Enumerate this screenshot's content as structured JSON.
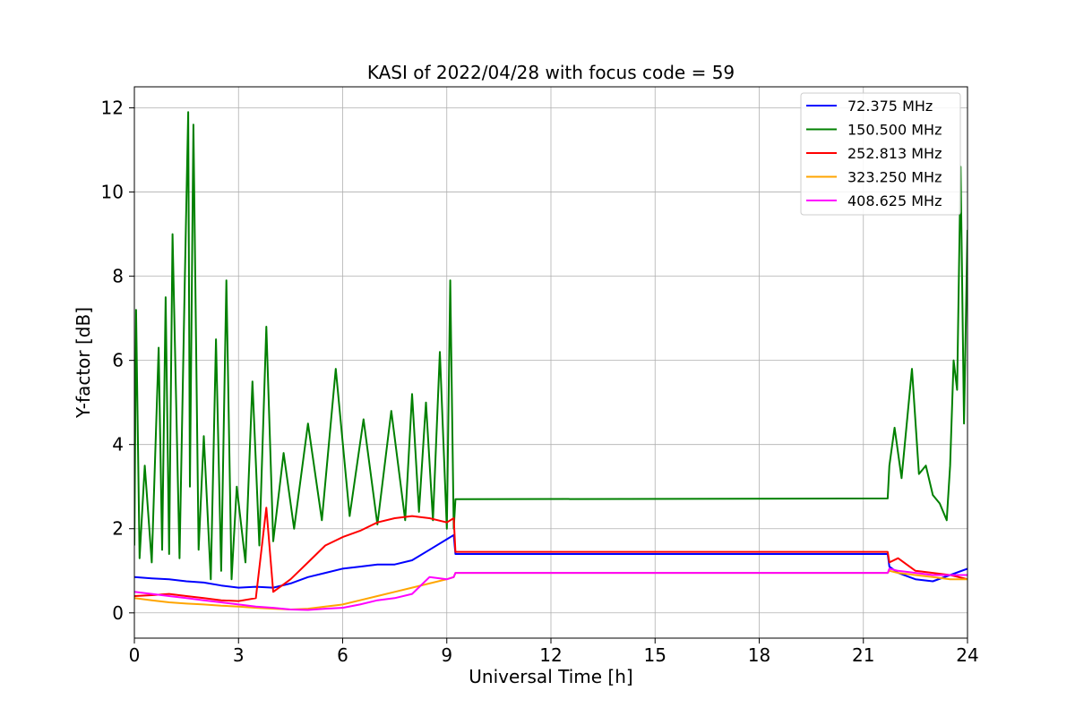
{
  "chart_data": {
    "type": "line",
    "title": "KASI of 2022/04/28 with focus code = 59",
    "xlabel": "Universal Time [h]",
    "ylabel": "Y-factor [dB]",
    "xlim": [
      0,
      24
    ],
    "ylim": [
      -0.6,
      12.5
    ],
    "xticks": [
      0,
      3,
      6,
      9,
      12,
      15,
      18,
      21,
      24
    ],
    "yticks": [
      0,
      2,
      4,
      6,
      8,
      10,
      12
    ],
    "grid": true,
    "legend_position": "top-right",
    "series": [
      {
        "name": " 72.375 MHz",
        "color": "#0000ff",
        "x": [
          0,
          0.5,
          1,
          1.5,
          2,
          2.5,
          3,
          3.5,
          4,
          4.5,
          5,
          5.5,
          6,
          6.5,
          7,
          7.5,
          8,
          8.5,
          9,
          9.2,
          9.25,
          21.7,
          21.75,
          22,
          22.5,
          23,
          23.5,
          24
        ],
        "y": [
          0.85,
          0.82,
          0.8,
          0.75,
          0.72,
          0.65,
          0.6,
          0.62,
          0.6,
          0.7,
          0.85,
          0.95,
          1.05,
          1.1,
          1.15,
          1.15,
          1.25,
          1.5,
          1.75,
          1.85,
          1.4,
          1.4,
          1.1,
          0.95,
          0.8,
          0.75,
          0.9,
          1.05
        ]
      },
      {
        "name": " 150.500 MHz",
        "color": "#008000",
        "x": [
          0,
          0.05,
          0.15,
          0.3,
          0.5,
          0.7,
          0.8,
          0.9,
          1,
          1.1,
          1.3,
          1.45,
          1.55,
          1.6,
          1.7,
          1.85,
          2,
          2.2,
          2.35,
          2.5,
          2.65,
          2.8,
          2.95,
          3.2,
          3.4,
          3.6,
          3.8,
          4,
          4.3,
          4.6,
          5,
          5.4,
          5.8,
          6.2,
          6.6,
          7,
          7.4,
          7.8,
          8,
          8.2,
          8.4,
          8.6,
          8.8,
          9,
          9.1,
          9.2,
          9.25,
          21.7,
          21.75,
          21.9,
          22.1,
          22.4,
          22.6,
          22.8,
          23,
          23.2,
          23.4,
          23.5,
          23.6,
          23.7,
          23.8,
          23.9,
          24
        ],
        "y": [
          1.6,
          7.2,
          1.3,
          3.5,
          1.2,
          6.3,
          1.5,
          7.5,
          1.4,
          9.0,
          1.3,
          7.8,
          11.9,
          3.0,
          11.6,
          1.5,
          4.2,
          0.8,
          6.5,
          1.0,
          7.9,
          0.8,
          3.0,
          1.2,
          5.5,
          1.6,
          6.8,
          1.7,
          3.8,
          2.0,
          4.5,
          2.2,
          5.8,
          2.3,
          4.6,
          2.1,
          4.8,
          2.2,
          5.2,
          2.4,
          5.0,
          2.2,
          6.2,
          2.0,
          7.9,
          2.0,
          2.7,
          2.72,
          3.5,
          4.4,
          3.2,
          5.8,
          3.3,
          3.5,
          2.8,
          2.6,
          2.2,
          3.5,
          6.0,
          5.3,
          10.6,
          4.5,
          9.1
        ]
      },
      {
        "name": " 252.813 MHz",
        "color": "#ff0000",
        "x": [
          0,
          0.5,
          1,
          1.5,
          2,
          2.5,
          3,
          3.5,
          3.8,
          4,
          4.5,
          5,
          5.5,
          6,
          6.5,
          7,
          7.5,
          8,
          8.5,
          9,
          9.2,
          9.25,
          21.7,
          21.75,
          22,
          22.5,
          23,
          23.5,
          24
        ],
        "y": [
          0.4,
          0.42,
          0.45,
          0.4,
          0.35,
          0.3,
          0.28,
          0.35,
          2.5,
          0.5,
          0.8,
          1.2,
          1.6,
          1.8,
          1.95,
          2.15,
          2.25,
          2.3,
          2.25,
          2.15,
          2.25,
          1.45,
          1.45,
          1.2,
          1.3,
          1.0,
          0.95,
          0.9,
          0.8
        ]
      },
      {
        "name": " 323.250 MHz",
        "color": "#ffa500",
        "x": [
          0,
          0.5,
          1,
          1.5,
          2,
          2.5,
          3,
          3.5,
          4,
          4.5,
          5,
          5.5,
          6,
          6.5,
          7,
          7.5,
          8,
          8.5,
          9,
          9.2,
          9.25,
          21.7,
          21.75,
          22,
          22.5,
          23,
          23.5,
          24
        ],
        "y": [
          0.35,
          0.3,
          0.25,
          0.22,
          0.2,
          0.17,
          0.15,
          0.12,
          0.1,
          0.08,
          0.1,
          0.15,
          0.2,
          0.3,
          0.4,
          0.5,
          0.6,
          0.7,
          0.8,
          0.85,
          0.95,
          0.95,
          1.0,
          0.95,
          0.9,
          0.85,
          0.8,
          0.8
        ]
      },
      {
        "name": " 408.625 MHz",
        "color": "#ff00ff",
        "x": [
          0,
          0.5,
          1,
          1.5,
          2,
          2.5,
          3,
          3.5,
          4,
          4.5,
          5,
          5.5,
          6,
          6.5,
          7,
          7.5,
          8,
          8.5,
          9,
          9.2,
          9.25,
          21.7,
          21.75,
          22,
          22.5,
          23,
          23.5,
          24
        ],
        "y": [
          0.5,
          0.45,
          0.4,
          0.35,
          0.3,
          0.25,
          0.2,
          0.15,
          0.12,
          0.08,
          0.07,
          0.1,
          0.12,
          0.2,
          0.3,
          0.35,
          0.45,
          0.85,
          0.8,
          0.85,
          0.95,
          0.95,
          1.05,
          1.0,
          0.95,
          0.9,
          0.9,
          0.9
        ]
      }
    ]
  }
}
